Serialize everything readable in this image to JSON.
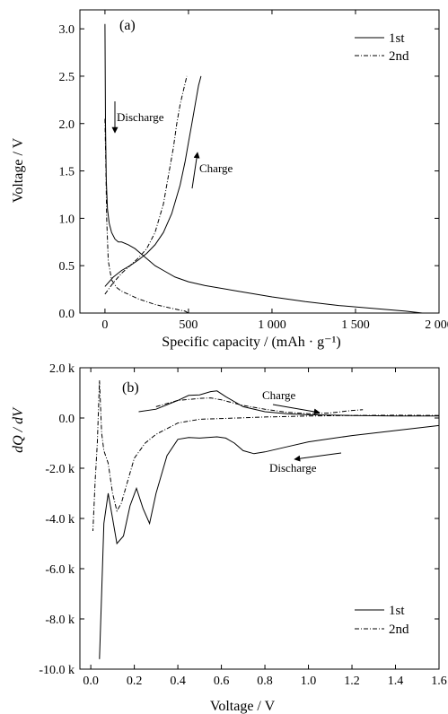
{
  "chart_data": [
    {
      "type": "line",
      "panel_label": "(a)",
      "xlabel": "Specific capacity / (mAh · g⁻¹)",
      "ylabel": "Voltage / V",
      "xlim": [
        -150,
        2000
      ],
      "ylim": [
        0.0,
        3.2
      ],
      "x_ticks": [
        0,
        500,
        1000,
        1500,
        2000
      ],
      "x_tick_labels": [
        "0",
        "500",
        "1 000",
        "1 500",
        "2 000"
      ],
      "y_ticks": [
        0.0,
        0.5,
        1.0,
        1.5,
        2.0,
        2.5,
        3.0
      ],
      "y_tick_labels": [
        "0.0",
        "0.5",
        "1.0",
        "1.5",
        "2.0",
        "2.5",
        "3.0"
      ],
      "grid": false,
      "legend_position": "top-right",
      "series": [
        {
          "name": "1st",
          "style": "solid",
          "color": "#000000",
          "segments": [
            {
              "label": "discharge",
              "x": [
                0,
                3,
                8,
                15,
                25,
                40,
                60,
                80,
                100,
                140,
                180,
                220,
                260,
                300,
                350,
                420,
                500,
                600,
                800,
                1000,
                1200,
                1400,
                1600,
                1800,
                1900
              ],
              "y": [
                3.05,
                2.0,
                1.4,
                1.1,
                0.95,
                0.85,
                0.78,
                0.75,
                0.75,
                0.72,
                0.68,
                0.62,
                0.56,
                0.5,
                0.45,
                0.38,
                0.33,
                0.29,
                0.23,
                0.17,
                0.12,
                0.08,
                0.05,
                0.02,
                0.0
              ]
            },
            {
              "label": "charge",
              "x": [
                0,
                50,
                100,
                150,
                200,
                250,
                300,
                350,
                400,
                450,
                480,
                500,
                520,
                540,
                560,
                575
              ],
              "y": [
                0.28,
                0.38,
                0.45,
                0.5,
                0.56,
                0.63,
                0.72,
                0.85,
                1.05,
                1.35,
                1.6,
                1.8,
                2.0,
                2.2,
                2.4,
                2.5
              ]
            }
          ]
        },
        {
          "name": "2nd",
          "style": "dash-dot",
          "color": "#000000",
          "segments": [
            {
              "label": "discharge",
              "x": [
                0,
                2,
                5,
                10,
                20,
                40,
                70,
                100,
                150,
                200,
                250,
                300,
                350,
                400,
                450,
                480,
                500
              ],
              "y": [
                2.05,
                1.85,
                1.6,
                1.0,
                0.55,
                0.35,
                0.27,
                0.23,
                0.19,
                0.15,
                0.12,
                0.09,
                0.07,
                0.05,
                0.03,
                0.02,
                0.0
              ]
            },
            {
              "label": "charge",
              "x": [
                0,
                50,
                100,
                150,
                200,
                250,
                300,
                350,
                380,
                410,
                430,
                450,
                470,
                490
              ],
              "y": [
                0.2,
                0.32,
                0.42,
                0.5,
                0.58,
                0.68,
                0.85,
                1.15,
                1.45,
                1.75,
                2.0,
                2.2,
                2.35,
                2.5
              ]
            }
          ]
        }
      ],
      "annotations": [
        {
          "text": "Discharge",
          "x": 30,
          "y": 2.05,
          "arrow": "down"
        },
        {
          "text": "Charge",
          "x": 610,
          "y": 1.55,
          "arrow": "up"
        }
      ]
    },
    {
      "type": "line",
      "panel_label": "(b)",
      "xlabel": "Voltage / V",
      "ylabel": "dQ / dV",
      "xlim": [
        -0.05,
        1.6
      ],
      "ylim": [
        -10000,
        2000
      ],
      "x_ticks": [
        0.0,
        0.2,
        0.4,
        0.6,
        0.8,
        1.0,
        1.2,
        1.4,
        1.6
      ],
      "x_tick_labels": [
        "0.0",
        "0.2",
        "0.4",
        "0.6",
        "0.8",
        "1.0",
        "1.2",
        "1.4",
        "1.6"
      ],
      "y_ticks": [
        -10000,
        -8000,
        -6000,
        -4000,
        -2000,
        0,
        2000
      ],
      "y_tick_labels": [
        "-10.0 k",
        "-8.0 k",
        "-6.0 k",
        "-4.0 k",
        "-2.0 k",
        "0.0",
        "2.0 k"
      ],
      "grid": false,
      "legend_position": "bottom-right",
      "series": [
        {
          "name": "1st",
          "style": "solid",
          "color": "#000000",
          "segments": [
            {
              "label": "discharge",
              "x": [
                1.6,
                1.4,
                1.2,
                1.0,
                0.9,
                0.8,
                0.75,
                0.7,
                0.66,
                0.62,
                0.58,
                0.5,
                0.45,
                0.4,
                0.35,
                0.3,
                0.27,
                0.24,
                0.21,
                0.18,
                0.15,
                0.12,
                0.1,
                0.08,
                0.06,
                0.05,
                0.04
              ],
              "y": [
                -300,
                -500,
                -700,
                -950,
                -1150,
                -1350,
                -1420,
                -1300,
                -1000,
                -800,
                -750,
                -800,
                -780,
                -850,
                -1500,
                -3000,
                -4200,
                -3600,
                -2800,
                -3500,
                -4700,
                -5000,
                -4000,
                -3000,
                -4200,
                -7000,
                -9600
              ]
            },
            {
              "label": "charge",
              "x": [
                0.22,
                0.3,
                0.4,
                0.45,
                0.5,
                0.55,
                0.58,
                0.62,
                0.7,
                0.8,
                0.9,
                1.0,
                1.2,
                1.4,
                1.6
              ],
              "y": [
                250,
                350,
                700,
                900,
                920,
                1050,
                1080,
                850,
                450,
                250,
                170,
                130,
                100,
                80,
                80
              ]
            }
          ]
        },
        {
          "name": "2nd",
          "style": "dash-dot",
          "color": "#000000",
          "segments": [
            {
              "label": "discharge",
              "x": [
                1.6,
                1.4,
                1.2,
                1.0,
                0.8,
                0.6,
                0.5,
                0.4,
                0.3,
                0.25,
                0.2,
                0.17,
                0.14,
                0.12,
                0.1,
                0.08,
                0.06,
                0.05,
                0.04,
                0.03,
                0.02,
                0.01
              ],
              "y": [
                100,
                110,
                100,
                80,
                40,
                -20,
                -50,
                -200,
                -650,
                -1000,
                -1600,
                -2500,
                -3400,
                -3700,
                -3000,
                -1800,
                -1300,
                -600,
                1500,
                -1000,
                -2500,
                -4500
              ]
            },
            {
              "label": "charge",
              "x": [
                0.3,
                0.4,
                0.5,
                0.55,
                0.6,
                0.7,
                0.8,
                0.9,
                1.0,
                1.1,
                1.2,
                1.25
              ],
              "y": [
                450,
                700,
                780,
                800,
                720,
                500,
                350,
                230,
                170,
                200,
                300,
                330
              ]
            }
          ]
        }
      ],
      "annotations": [
        {
          "text": "Charge",
          "x": 1.08,
          "y": 300,
          "arrow": "right"
        },
        {
          "text": "Discharge",
          "x": 0.8,
          "y": -1350,
          "arrow": "left"
        }
      ]
    }
  ]
}
